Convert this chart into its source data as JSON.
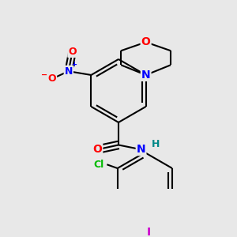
{
  "bg_color": "#e8e8e8",
  "bond_color": "#000000",
  "bond_width": 1.5,
  "dbo": 0.05,
  "atom_colors": {
    "O": "#ff0000",
    "N": "#0000ff",
    "Cl": "#00bb00",
    "I": "#cc00cc",
    "H": "#008888",
    "C": "#000000"
  },
  "fs_large": 10,
  "fs_small": 9,
  "fs_tiny": 8
}
